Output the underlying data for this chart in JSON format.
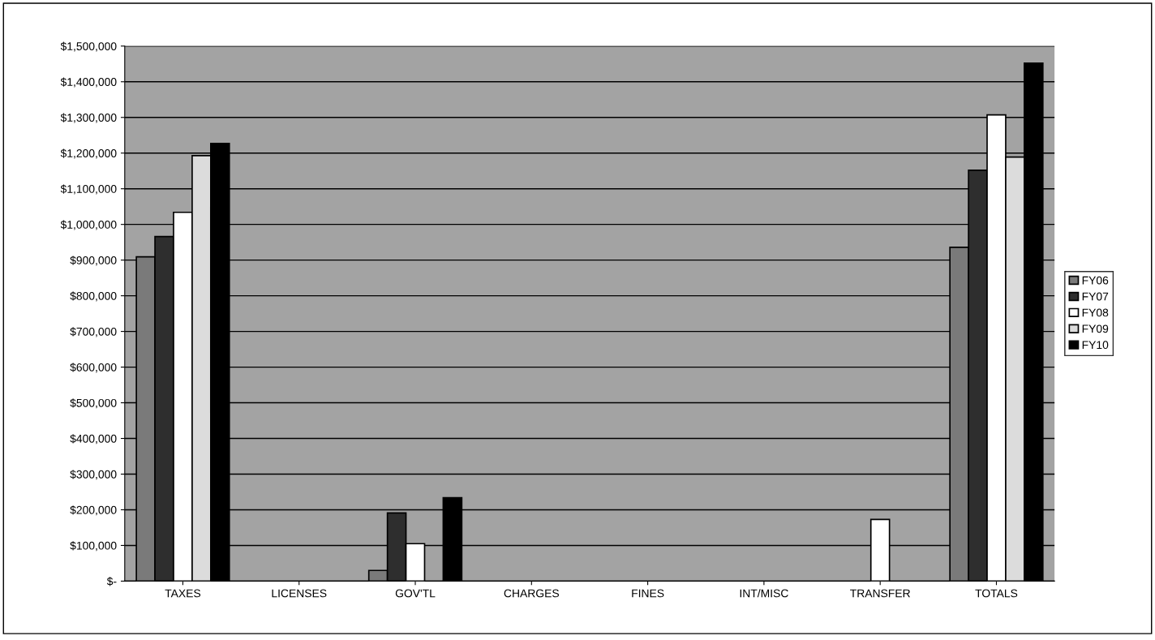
{
  "chart_data": {
    "type": "bar",
    "categories": [
      "TAXES",
      "LICENSES",
      "GOV'TL",
      "CHARGES",
      "FINES",
      "INT/MISC",
      "TRANSFER",
      "TOTALS"
    ],
    "series": [
      {
        "name": "FY06",
        "color": "#7a7a7a",
        "values": [
          909000,
          0,
          30000,
          0,
          0,
          0,
          0,
          936000
        ]
      },
      {
        "name": "FY07",
        "color": "#2e2e2e",
        "values": [
          966000,
          0,
          191000,
          0,
          0,
          0,
          0,
          1152000
        ]
      },
      {
        "name": "FY08",
        "color": "#ffffff",
        "values": [
          1034000,
          0,
          105000,
          0,
          0,
          0,
          173000,
          1307000
        ]
      },
      {
        "name": "FY09",
        "color": "#dcdcdc",
        "values": [
          1193000,
          0,
          0,
          0,
          0,
          0,
          0,
          1189000
        ]
      },
      {
        "name": "FY10",
        "color": "#000000",
        "values": [
          1227000,
          0,
          234000,
          0,
          0,
          0,
          0,
          1452000
        ]
      }
    ],
    "ylim": [
      0,
      1500000
    ],
    "yticks": [
      {
        "value": 0,
        "label": "$-"
      },
      {
        "value": 100000,
        "label": "$100,000"
      },
      {
        "value": 200000,
        "label": "$200,000"
      },
      {
        "value": 300000,
        "label": "$300,000"
      },
      {
        "value": 400000,
        "label": "$400,000"
      },
      {
        "value": 500000,
        "label": "$500,000"
      },
      {
        "value": 600000,
        "label": "$600,000"
      },
      {
        "value": 700000,
        "label": "$700,000"
      },
      {
        "value": 800000,
        "label": "$800,000"
      },
      {
        "value": 900000,
        "label": "$900,000"
      },
      {
        "value": 1000000,
        "label": "$1,000,000"
      },
      {
        "value": 1100000,
        "label": "$1,100,000"
      },
      {
        "value": 1200000,
        "label": "$1,200,000"
      },
      {
        "value": 1300000,
        "label": "$1,300,000"
      },
      {
        "value": 1400000,
        "label": "$1,400,000"
      },
      {
        "value": 1500000,
        "label": "$1,500,000"
      }
    ],
    "grid": "y",
    "legend": "right"
  }
}
